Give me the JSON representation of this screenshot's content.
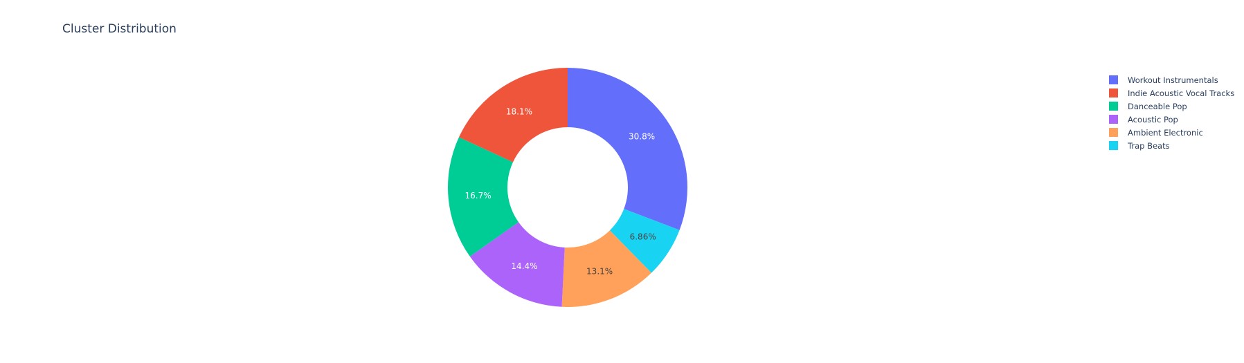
{
  "chart_data": {
    "type": "pie",
    "hole": true,
    "title": "Cluster Distribution",
    "legend_placement": "top-right",
    "slices": [
      {
        "label": "Workout Instrumentals",
        "value": 30.8,
        "text": "30.8%",
        "color": "#636efa"
      },
      {
        "label": "Trap Beats",
        "value": 6.86,
        "text": "6.86%",
        "color": "#19d3f3"
      },
      {
        "label": "Ambient Electronic",
        "value": 13.1,
        "text": "13.1%",
        "color": "#ffa15a"
      },
      {
        "label": "Acoustic Pop",
        "value": 14.4,
        "text": "14.4%",
        "color": "#ab63fa"
      },
      {
        "label": "Danceable Pop",
        "value": 16.7,
        "text": "16.7%",
        "color": "#00cc96"
      },
      {
        "label": "Indie Acoustic Vocal Tracks",
        "value": 18.1,
        "text": "18.1%",
        "color": "#ef553b"
      }
    ],
    "legend": [
      {
        "label": "Workout Instrumentals",
        "color": "#636efa"
      },
      {
        "label": "Indie Acoustic Vocal Tracks",
        "color": "#ef553b"
      },
      {
        "label": "Danceable Pop",
        "color": "#00cc96"
      },
      {
        "label": "Acoustic Pop",
        "color": "#ab63fa"
      },
      {
        "label": "Ambient Electronic",
        "color": "#ffa15a"
      },
      {
        "label": "Trap Beats",
        "color": "#19d3f3"
      }
    ]
  }
}
